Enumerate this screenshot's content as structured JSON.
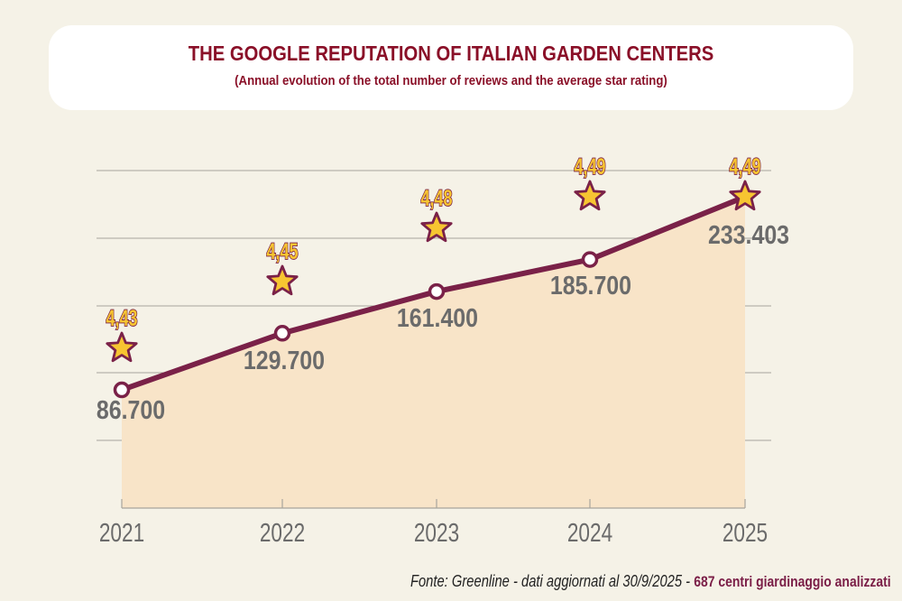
{
  "header": {
    "title": "THE GOOGLE REPUTATION OF ITALIAN GARDEN CENTERS",
    "subtitle": "(Annual evolution of the total number of reviews and the average star rating)"
  },
  "footer": {
    "source_text": "Fonte: Greenline - dati aggiornati al 30/9/2025 - ",
    "highlight_text": "687 centri giardinaggio analizzati"
  },
  "colors": {
    "background": "#f5f2e7",
    "line": "#7a2148",
    "area_fill": "#f8e4c8",
    "gridline": "#a8a49c",
    "value_label": "#6b6b6b",
    "star_fill": "#f7c531",
    "star_outline": "#7a2148",
    "rating_label_fill": "#f7c531",
    "title": "#8a1028"
  },
  "chart_data": {
    "type": "line",
    "title": "THE GOOGLE REPUTATION OF ITALIAN GARDEN CENTERS",
    "subtitle": "(Annual evolution of the total number of reviews and the average star rating)",
    "xlabel": "",
    "ylabel": "",
    "categories": [
      "2021",
      "2022",
      "2023",
      "2024",
      "2025"
    ],
    "ylim": [
      0,
      250000
    ],
    "grid": true,
    "legend": "none",
    "series": [
      {
        "name": "Total reviews",
        "values": [
          86700,
          129700,
          161400,
          185700,
          233403
        ],
        "labels": [
          "86.700",
          "129.700",
          "161.400",
          "185.700",
          "233.403"
        ]
      },
      {
        "name": "Average star rating",
        "values": [
          4.43,
          4.45,
          4.48,
          4.49,
          4.49
        ],
        "labels": [
          "4,43",
          "4,45",
          "4,48",
          "4,49",
          "4,49"
        ]
      }
    ]
  }
}
